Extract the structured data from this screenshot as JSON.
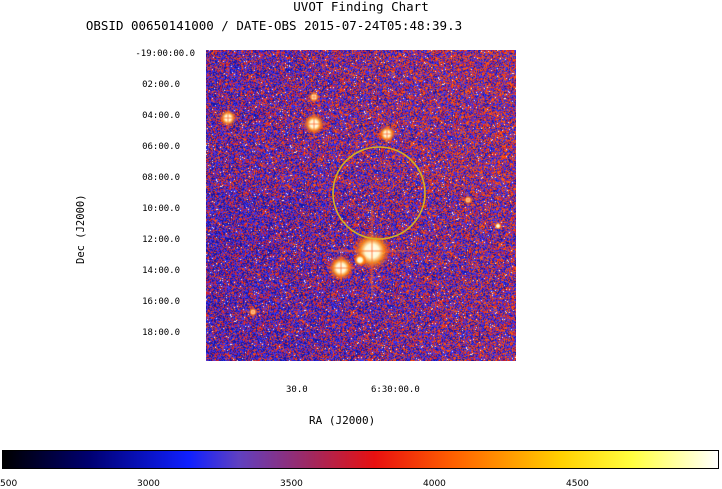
{
  "header": {
    "title": "UVOT Finding Chart",
    "subtitle": "OBSID 00650141000 / DATE-OBS 2015-07-24T05:48:39.3"
  },
  "axes": {
    "y_label": "Dec (J2000)",
    "x_label": "RA (J2000)",
    "dec_ticks": [
      "-19:00:00.0",
      "02:00.0",
      "04:00.0",
      "06:00.0",
      "08:00.0",
      "10:00.0",
      "12:00.0",
      "14:00.0",
      "16:00.0",
      "18:00.0"
    ],
    "ra_ticks": [
      "30.0",
      "6:30:00.0"
    ]
  },
  "colorbar": {
    "ticks": [
      "500",
      "3000",
      "3500",
      "4000",
      "4500"
    ]
  },
  "colors": {
    "circle": "#d4b020",
    "background_field": "#5b2a9e"
  }
}
